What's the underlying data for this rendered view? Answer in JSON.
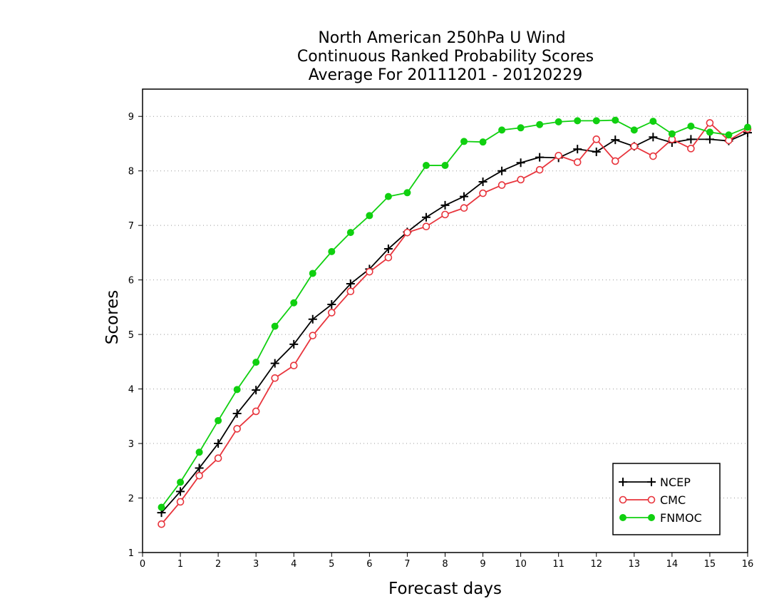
{
  "chart_data": {
    "type": "line",
    "title": [
      "North American 250hPa U Wind",
      "Continuous Ranked Probability Scores",
      "Average For 20111201 - 20120229"
    ],
    "xlabel": "Forecast days",
    "ylabel": "Scores",
    "xlim": [
      0,
      16
    ],
    "ylim": [
      1,
      9.5
    ],
    "x_ticks": [
      "0",
      "1",
      "2",
      "3",
      "4",
      "5",
      "6",
      "7",
      "8",
      "9",
      "10",
      "11",
      "12",
      "13",
      "14",
      "15",
      "16"
    ],
    "y_ticks": [
      "1",
      "2",
      "3",
      "4",
      "5",
      "6",
      "7",
      "8",
      "9"
    ],
    "grid": "horizontal-dotted",
    "legend_position": "bottom-right",
    "x": [
      0.5,
      1,
      1.5,
      2,
      2.5,
      3,
      3.5,
      4,
      4.5,
      5,
      5.5,
      6,
      6.5,
      7,
      7.5,
      8,
      8.5,
      9,
      9.5,
      10,
      10.5,
      11,
      11.5,
      12,
      12.5,
      13,
      13.5,
      14,
      14.5,
      15,
      15.5,
      16
    ],
    "series": [
      {
        "name": "NCEP",
        "color": "#000000",
        "marker": "plus",
        "values": [
          1.73,
          2.12,
          2.55,
          3.0,
          3.55,
          3.98,
          4.47,
          4.82,
          5.28,
          5.55,
          5.93,
          6.2,
          6.57,
          6.88,
          7.15,
          7.37,
          7.53,
          7.8,
          8.0,
          8.15,
          8.25,
          8.24,
          8.4,
          8.35,
          8.57,
          8.45,
          8.62,
          8.52,
          8.58,
          8.58,
          8.55,
          8.7
        ]
      },
      {
        "name": "CMC",
        "color": "#e8343c",
        "marker": "circle-open",
        "values": [
          1.52,
          1.93,
          2.41,
          2.73,
          3.27,
          3.59,
          4.2,
          4.43,
          4.98,
          5.4,
          5.79,
          6.15,
          6.41,
          6.87,
          6.98,
          7.2,
          7.32,
          7.59,
          7.74,
          7.84,
          8.02,
          8.28,
          8.16,
          8.58,
          8.18,
          8.45,
          8.27,
          8.58,
          8.41,
          8.88,
          8.56,
          8.77
        ]
      },
      {
        "name": "FNMOC",
        "color": "#10d010",
        "marker": "circle-filled",
        "values": [
          1.83,
          2.29,
          2.84,
          3.42,
          3.99,
          4.49,
          5.15,
          5.58,
          6.12,
          6.52,
          6.87,
          7.18,
          7.53,
          7.6,
          8.1,
          8.1,
          8.54,
          8.53,
          8.75,
          8.79,
          8.85,
          8.9,
          8.92,
          8.92,
          8.93,
          8.75,
          8.91,
          8.68,
          8.82,
          8.71,
          8.66,
          8.8
        ]
      }
    ]
  }
}
